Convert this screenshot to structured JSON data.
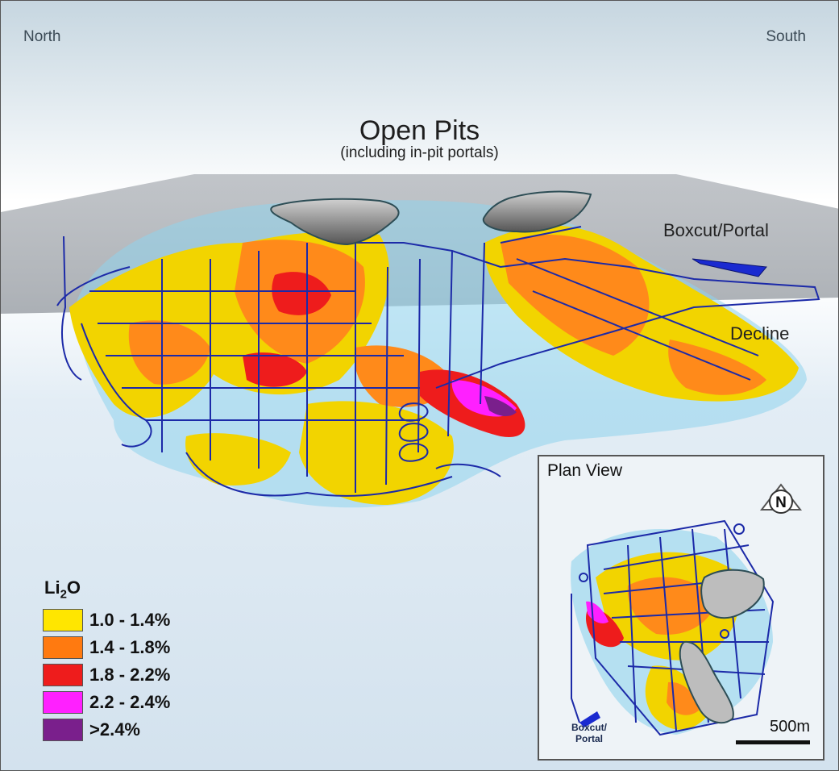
{
  "compass": {
    "north": "North",
    "south": "South"
  },
  "title": {
    "main": "Open Pits",
    "sub": "(including in-pit portals)"
  },
  "labels": {
    "boxcut": "Boxcut/Portal",
    "decline": "Decline"
  },
  "legend": {
    "title_prefix": "Li",
    "title_sub": "2",
    "title_suffix": "O",
    "items": [
      {
        "label": "1.0 - 1.4%",
        "color": "#ffe600"
      },
      {
        "label": "1.4 - 1.8%",
        "color": "#ff7a10"
      },
      {
        "label": "1.8 - 2.2%",
        "color": "#ee1c1c"
      },
      {
        "label": "2.2 - 2.4%",
        "color": "#ff20ff"
      },
      {
        "label": ">2.4%",
        "color": "#7a1f8c"
      }
    ]
  },
  "inset": {
    "title": "Plan View",
    "north_letter": "N",
    "portal_line1": "Boxcut/",
    "portal_line2": "Portal",
    "scale": "500m"
  },
  "colors": {
    "tunnel": "#1c2aa8",
    "halo": "#8fd4ec",
    "pit": "#6e6e6e",
    "plane": "#a9aeb4"
  }
}
